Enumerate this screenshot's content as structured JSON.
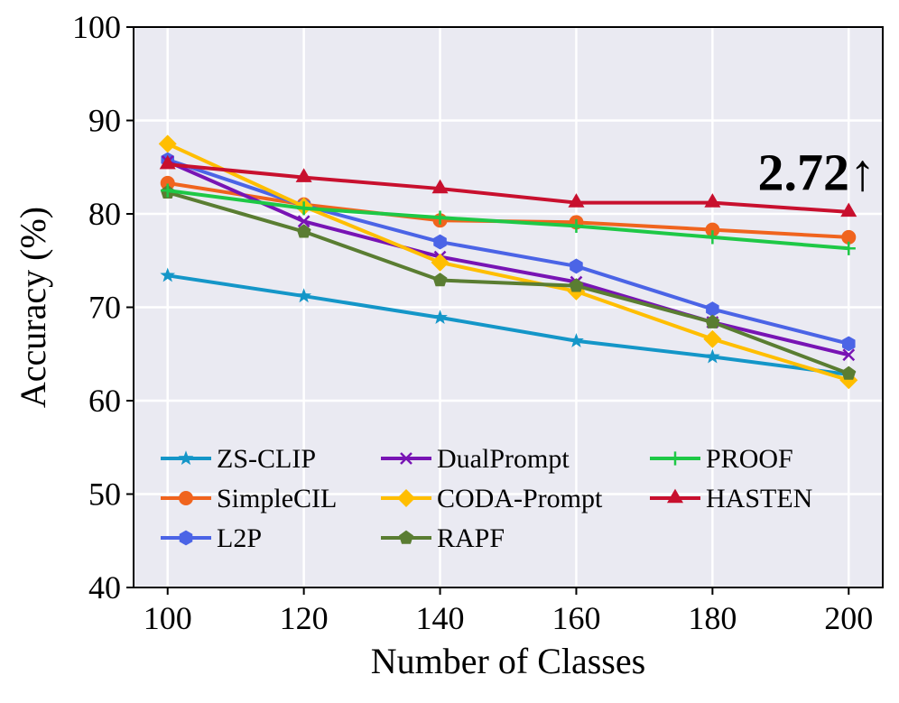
{
  "chart_data": {
    "type": "line",
    "title": "",
    "xlabel": "Number of Classes",
    "ylabel": "Accuracy (%)",
    "x": [
      100,
      120,
      140,
      160,
      180,
      200
    ],
    "xlim": [
      95,
      205
    ],
    "ylim": [
      40,
      100
    ],
    "xticks": [
      100,
      120,
      140,
      160,
      180,
      200
    ],
    "yticks": [
      40,
      50,
      60,
      70,
      80,
      90,
      100
    ],
    "grid": true,
    "legend_position": "lower-left",
    "legend_columns": 3,
    "annotation": {
      "text": "2.72↑",
      "x": 200,
      "y": 84.5
    },
    "series": [
      {
        "name": "ZS-CLIP",
        "color": "#1496C8",
        "marker": "star",
        "values": [
          73.4,
          71.2,
          68.9,
          66.4,
          64.7,
          62.8
        ]
      },
      {
        "name": "SimpleCIL",
        "color": "#F0641E",
        "marker": "circle",
        "values": [
          83.3,
          81.0,
          79.3,
          79.1,
          78.3,
          77.5
        ]
      },
      {
        "name": "L2P",
        "color": "#4B64E6",
        "marker": "hexagon",
        "values": [
          85.8,
          80.9,
          77.0,
          74.4,
          69.8,
          66.1
        ]
      },
      {
        "name": "DualPrompt",
        "color": "#7814B4",
        "marker": "x",
        "values": [
          85.6,
          79.2,
          75.4,
          72.7,
          68.4,
          64.9
        ]
      },
      {
        "name": "CODA-Prompt",
        "color": "#FFBE00",
        "marker": "diamond",
        "values": [
          87.5,
          80.8,
          74.8,
          71.7,
          66.6,
          62.2
        ]
      },
      {
        "name": "RAPF",
        "color": "#5A7D32",
        "marker": "pentagon",
        "values": [
          82.3,
          78.1,
          72.9,
          72.3,
          68.4,
          62.9
        ]
      },
      {
        "name": "PROOF",
        "color": "#1EC846",
        "marker": "plus",
        "values": [
          82.5,
          80.6,
          79.6,
          78.7,
          77.5,
          76.3
        ]
      },
      {
        "name": "HASTEN",
        "color": "#C8102E",
        "marker": "triangle",
        "values": [
          85.3,
          83.9,
          82.7,
          81.2,
          81.2,
          80.2
        ]
      }
    ]
  }
}
